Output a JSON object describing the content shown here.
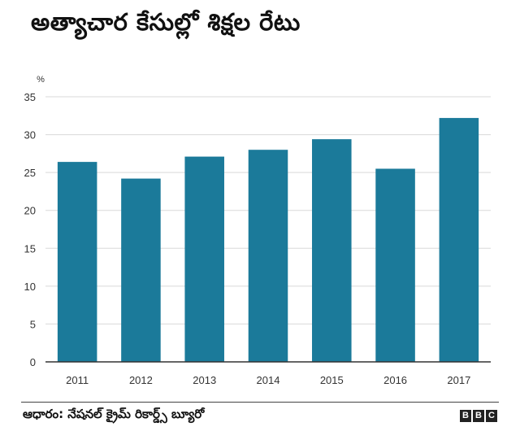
{
  "header": {
    "title": "అత్యాచార కేసుల్లో శిక్షల రేటు"
  },
  "footer": {
    "source": "ఆధారం: నేషనల్ క్రైమ్ రికార్డ్స్ బ్యూరో",
    "logo_letters": [
      "B",
      "B",
      "C"
    ]
  },
  "colors": {
    "bar": "#1b7a9a",
    "axis": "#333333",
    "grid": "#d9d9d9"
  },
  "chart_data": {
    "type": "bar",
    "title": "అత్యాచార కేసుల్లో శిక్షల రేటు",
    "ylabel": "%",
    "xlabel": "",
    "categories": [
      "2011",
      "2012",
      "2013",
      "2014",
      "2015",
      "2016",
      "2017"
    ],
    "values": [
      26.4,
      24.2,
      27.1,
      28.0,
      29.4,
      25.5,
      32.2
    ],
    "ylim": [
      0,
      35
    ],
    "yticks": [
      0,
      5,
      10,
      15,
      20,
      25,
      30,
      35
    ],
    "grid": true
  }
}
